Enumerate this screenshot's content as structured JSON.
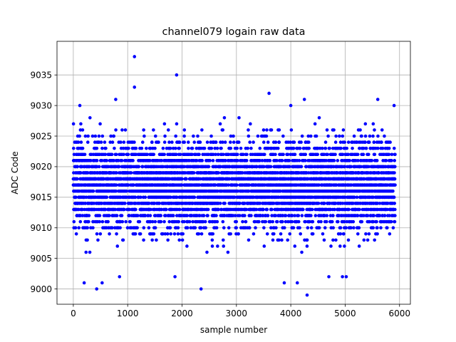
{
  "chart_data": {
    "type": "scatter",
    "title": "channel079 logain raw data",
    "xlabel": "sample number",
    "ylabel": "ADC Code",
    "xlim": [
      -300,
      6200
    ],
    "ylim": [
      8997.5,
      9040.5
    ],
    "xticks": [
      0,
      1000,
      2000,
      3000,
      4000,
      5000,
      6000
    ],
    "yticks": [
      9000,
      9005,
      9010,
      9015,
      9020,
      9025,
      9030,
      9035
    ],
    "grid": true,
    "marker_color": "#0000ff",
    "series": [
      {
        "n_samples": 5920,
        "x_range": [
          0,
          5919
        ],
        "typical_range": [
          9005,
          9028
        ],
        "center": 9017,
        "outliers": [
          {
            "x": 1125,
            "y": 9038
          },
          {
            "x": 1125,
            "y": 9033
          },
          {
            "x": 1900,
            "y": 9035
          },
          {
            "x": 3600,
            "y": 9032
          },
          {
            "x": 4250,
            "y": 9031
          },
          {
            "x": 5600,
            "y": 9031
          },
          {
            "x": 780,
            "y": 9031
          },
          {
            "x": 120,
            "y": 9030
          },
          {
            "x": 4000,
            "y": 9030
          },
          {
            "x": 5900,
            "y": 9030
          },
          {
            "x": 2350,
            "y": 9000
          },
          {
            "x": 430,
            "y": 9000
          },
          {
            "x": 4300,
            "y": 8999
          },
          {
            "x": 200,
            "y": 9001
          },
          {
            "x": 530,
            "y": 9001
          },
          {
            "x": 3880,
            "y": 9001
          },
          {
            "x": 4120,
            "y": 9001
          },
          {
            "x": 4950,
            "y": 9002
          },
          {
            "x": 5020,
            "y": 9002
          },
          {
            "x": 850,
            "y": 9002
          },
          {
            "x": 1870,
            "y": 9002
          },
          {
            "x": 4700,
            "y": 9002
          }
        ]
      }
    ]
  }
}
